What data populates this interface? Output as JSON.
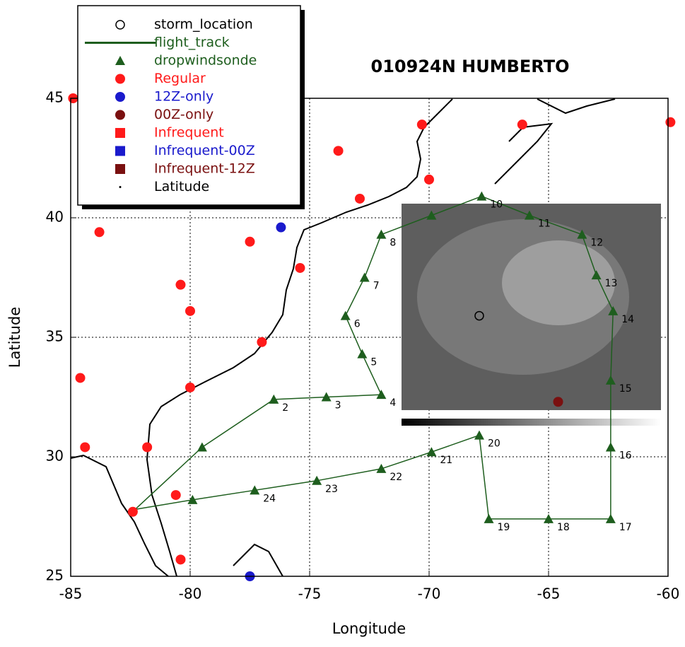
{
  "chart_data": {
    "type": "scatter",
    "title": "010924N HUMBERTO",
    "xlabel": "Longitude",
    "ylabel": "Latitude",
    "xlim": [
      -85,
      -60
    ],
    "ylim": [
      25,
      45
    ],
    "xticks": [
      -85,
      -80,
      -75,
      -70,
      -65,
      -60
    ],
    "yticks": [
      25,
      30,
      35,
      40,
      45
    ],
    "grid": true,
    "legend": "upper left",
    "series": [
      {
        "name": "storm_location",
        "marker": "circle-open",
        "color": "#000000",
        "x": [
          -67.9
        ],
        "y": [
          35.9
        ]
      },
      {
        "name": "flight_track",
        "marker": "line",
        "color": "#1e5e1e",
        "x": [
          -82.3,
          -79.5,
          -76.5,
          -74.3,
          -72.0,
          -72.8,
          -73.5,
          -72.7,
          -72.0,
          -69.9,
          -67.8,
          -65.8,
          -63.6,
          -63.0,
          -62.3,
          -62.4,
          -62.4,
          -62.4,
          -65.0,
          -67.5,
          -67.9,
          -69.9,
          -72.0,
          -74.7,
          -77.3,
          -79.9,
          -82.3
        ],
        "y": [
          27.8,
          30.4,
          32.4,
          32.5,
          32.6,
          34.3,
          35.9,
          37.5,
          39.3,
          40.1,
          40.9,
          40.1,
          39.3,
          37.6,
          36.1,
          33.2,
          30.4,
          27.4,
          27.4,
          27.4,
          30.9,
          30.2,
          29.5,
          29.0,
          28.6,
          28.2,
          27.8
        ]
      },
      {
        "name": "dropwindsonde",
        "marker": "triangle",
        "color": "#1e5e1e",
        "x": [
          -79.5,
          -76.5,
          -74.3,
          -72.0,
          -72.8,
          -73.5,
          -72.7,
          -72.0,
          -69.9,
          -67.8,
          -65.8,
          -63.6,
          -63.0,
          -62.3,
          -62.4,
          -62.4,
          -62.4,
          -65.0,
          -67.5,
          -67.9,
          -69.9,
          -72.0,
          -74.7,
          -77.3,
          -79.9
        ],
        "y": [
          30.4,
          32.4,
          32.5,
          32.6,
          34.3,
          35.9,
          37.5,
          39.3,
          40.1,
          40.9,
          40.1,
          39.3,
          37.6,
          36.1,
          33.2,
          30.4,
          27.4,
          27.4,
          27.4,
          30.9,
          30.2,
          29.5,
          29.0,
          28.6,
          28.2
        ],
        "labels": [
          null,
          "2",
          "3",
          "4",
          "5",
          "6",
          "7",
          "8",
          null,
          "10",
          "11",
          "12",
          "13",
          "14",
          "15",
          "16",
          "17",
          "18",
          "19",
          "20",
          "21",
          "22",
          "23",
          "24",
          null
        ]
      },
      {
        "name": "Regular",
        "marker": "circle",
        "color": "#ff1a1a",
        "x": [
          -84.9,
          -70.3,
          -66.1,
          -59.9,
          -73.8,
          -70.0,
          -72.9,
          -83.8,
          -77.5,
          -75.4,
          -80.4,
          -80.0,
          -77.0,
          -84.6,
          -80.0,
          -84.4,
          -81.8,
          -80.6,
          -82.4,
          -80.4
        ],
        "y": [
          45.0,
          43.9,
          43.9,
          44.0,
          42.8,
          41.6,
          40.8,
          39.4,
          39.0,
          37.9,
          37.2,
          36.1,
          34.8,
          33.3,
          32.9,
          30.4,
          30.4,
          28.4,
          27.7,
          25.7
        ]
      },
      {
        "name": "12Z-only",
        "marker": "circle",
        "color": "#1a1acc",
        "x": [
          -76.2,
          -77.5
        ],
        "y": [
          39.6,
          25.0
        ]
      },
      {
        "name": "00Z-only",
        "marker": "circle",
        "color": "#7a1010",
        "x": [
          -64.6
        ],
        "y": [
          32.3
        ]
      },
      {
        "name": "Infrequent",
        "marker": "square",
        "color": "#ff1a1a",
        "x": [],
        "y": []
      },
      {
        "name": "Infrequent-00Z",
        "marker": "square",
        "color": "#1a1acc",
        "x": [],
        "y": []
      },
      {
        "name": "Infrequent-12Z",
        "marker": "square",
        "color": "#7a1010",
        "x": [],
        "y": []
      },
      {
        "name": "Latitude",
        "marker": "dot",
        "color": "#000000",
        "x": [],
        "y": []
      }
    ]
  }
}
